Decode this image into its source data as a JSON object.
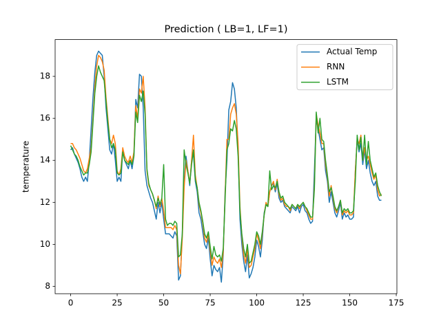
{
  "chart_data": {
    "type": "line",
    "title": "Prediction ( LB=1, LF=1)",
    "ylabel": "temperature",
    "x": [
      0,
      1,
      2,
      3,
      4,
      5,
      6,
      7,
      8,
      9,
      10,
      11,
      12,
      13,
      14,
      15,
      16,
      17,
      18,
      19,
      20,
      21,
      22,
      23,
      24,
      25,
      26,
      27,
      28,
      29,
      30,
      31,
      32,
      33,
      34,
      35,
      36,
      37,
      38,
      39,
      40,
      41,
      42,
      43,
      44,
      45,
      46,
      47,
      48,
      49,
      50,
      51,
      52,
      53,
      54,
      55,
      56,
      57,
      58,
      59,
      60,
      61,
      62,
      63,
      64,
      65,
      66,
      67,
      68,
      69,
      70,
      71,
      72,
      73,
      74,
      75,
      76,
      77,
      78,
      79,
      80,
      81,
      82,
      83,
      84,
      85,
      86,
      87,
      88,
      89,
      90,
      91,
      92,
      93,
      94,
      95,
      96,
      97,
      98,
      99,
      100,
      101,
      102,
      103,
      104,
      105,
      106,
      107,
      108,
      109,
      110,
      111,
      112,
      113,
      114,
      115,
      116,
      117,
      118,
      119,
      120,
      121,
      122,
      123,
      124,
      125,
      126,
      127,
      128,
      129,
      130,
      131,
      132,
      133,
      134,
      135,
      136,
      137,
      138,
      139,
      140,
      141,
      142,
      143,
      144,
      145,
      146,
      147,
      148,
      149,
      150,
      151,
      152,
      153,
      154,
      155,
      156,
      157,
      158,
      159,
      160,
      161,
      162,
      163,
      164,
      165,
      166,
      167
    ],
    "series": [
      {
        "name": "Actual Temp",
        "color": "#1f77b4",
        "values": [
          14.5,
          14.6,
          14.3,
          14.1,
          13.9,
          13.6,
          13.2,
          13.0,
          13.2,
          13.0,
          14.0,
          15.5,
          17.0,
          18.2,
          19.0,
          19.2,
          19.1,
          19.0,
          18.0,
          16.5,
          15.5,
          14.5,
          14.3,
          14.8,
          14.0,
          13.0,
          13.2,
          13.0,
          14.5,
          14.0,
          13.8,
          13.6,
          14.0,
          13.6,
          14.2,
          16.9,
          16.5,
          18.1,
          18.0,
          16.5,
          13.5,
          12.8,
          12.5,
          12.2,
          12.0,
          11.6,
          11.2,
          12.0,
          11.5,
          12.0,
          11.2,
          10.5,
          10.5,
          10.5,
          10.4,
          10.3,
          10.6,
          10.4,
          8.3,
          8.5,
          10.5,
          13.0,
          14.2,
          13.5,
          12.8,
          14.0,
          14.3,
          13.0,
          12.5,
          11.5,
          11.2,
          10.6,
          10.0,
          9.8,
          10.3,
          9.3,
          8.5,
          9.0,
          8.8,
          8.7,
          8.9,
          8.2,
          9.5,
          12.5,
          14.0,
          16.4,
          16.8,
          17.7,
          17.4,
          16.5,
          14.5,
          11.2,
          10.0,
          9.2,
          8.7,
          9.5,
          8.4,
          8.6,
          8.9,
          9.4,
          10.2,
          9.9,
          9.4,
          10.2,
          11.5,
          11.9,
          11.8,
          12.5,
          12.8,
          12.9,
          12.5,
          12.9,
          12.2,
          12.0,
          12.1,
          11.8,
          11.7,
          11.6,
          11.5,
          11.8,
          11.7,
          11.6,
          11.8,
          11.5,
          11.8,
          11.9,
          11.6,
          11.5,
          11.2,
          11.0,
          11.1,
          13.5,
          16.0,
          15.5,
          15.0,
          14.5,
          14.6,
          13.5,
          13.0,
          12.0,
          12.5,
          12.0,
          11.5,
          11.3,
          11.6,
          12.0,
          11.2,
          11.5,
          11.3,
          11.4,
          11.2,
          11.2,
          11.3,
          13.5,
          15.0,
          14.4,
          14.8,
          13.8,
          14.5,
          13.6,
          14.0,
          13.4,
          13.0,
          12.8,
          13.0,
          12.3,
          12.1,
          12.1
        ]
      },
      {
        "name": "RNN",
        "color": "#ff7f0e",
        "values": [
          14.8,
          14.8,
          14.6,
          14.5,
          14.3,
          14.1,
          13.8,
          13.5,
          13.4,
          13.6,
          14.1,
          14.6,
          16.0,
          17.5,
          18.5,
          19.0,
          18.9,
          18.7,
          18.3,
          17.0,
          16.0,
          15.0,
          14.8,
          15.2,
          14.8,
          13.5,
          13.3,
          13.6,
          14.6,
          14.2,
          14.0,
          13.9,
          14.2,
          13.9,
          14.4,
          16.6,
          16.0,
          17.4,
          17.2,
          18.0,
          16.5,
          13.5,
          12.8,
          12.6,
          12.4,
          12.1,
          11.7,
          12.3,
          11.8,
          12.2,
          11.6,
          10.8,
          10.8,
          10.8,
          10.8,
          10.7,
          10.9,
          10.7,
          9.0,
          8.6,
          10.3,
          12.7,
          14.0,
          13.5,
          12.9,
          14.0,
          15.2,
          13.3,
          12.7,
          11.9,
          11.5,
          11.0,
          10.3,
          10.1,
          10.5,
          9.7,
          9.0,
          9.4,
          9.2,
          9.1,
          9.3,
          8.9,
          9.6,
          12.3,
          15.0,
          15.0,
          16.2,
          16.5,
          16.7,
          16.2,
          14.8,
          11.8,
          10.4,
          9.5,
          9.1,
          9.8,
          8.9,
          9.0,
          9.4,
          9.8,
          10.5,
          10.2,
          9.8,
          10.5,
          11.4,
          12.0,
          11.8,
          12.5,
          12.8,
          13.0,
          12.6,
          13.1,
          12.4,
          12.1,
          12.2,
          11.9,
          11.8,
          11.8,
          11.6,
          11.9,
          11.8,
          11.7,
          11.9,
          11.7,
          11.9,
          12.0,
          11.8,
          11.6,
          11.4,
          11.2,
          11.2,
          12.8,
          16.2,
          15.7,
          15.3,
          14.8,
          14.8,
          13.8,
          13.2,
          12.3,
          12.8,
          12.2,
          11.7,
          11.5,
          11.8,
          12.1,
          11.4,
          11.6,
          11.5,
          11.6,
          11.4,
          11.4,
          11.5,
          13.5,
          15.0,
          14.8,
          15.2,
          14.0,
          14.6,
          14.0,
          14.2,
          13.8,
          13.4,
          13.1,
          13.3,
          12.6,
          12.3,
          12.4
        ]
      },
      {
        "name": "LSTM",
        "color": "#2ca02c",
        "values": [
          14.7,
          14.5,
          14.3,
          14.2,
          14.0,
          13.7,
          13.5,
          13.3,
          13.4,
          13.4,
          13.8,
          14.4,
          15.8,
          17.2,
          18.0,
          18.5,
          18.2,
          18.0,
          17.8,
          16.8,
          15.8,
          15.0,
          14.6,
          14.8,
          14.5,
          13.4,
          13.3,
          13.4,
          14.4,
          14.0,
          13.9,
          13.8,
          14.0,
          13.8,
          14.2,
          16.3,
          15.8,
          17.1,
          16.8,
          17.3,
          16.2,
          13.6,
          12.9,
          12.6,
          12.4,
          12.1,
          11.8,
          12.2,
          11.9,
          12.2,
          13.8,
          11.2,
          10.9,
          11.0,
          11.0,
          10.9,
          11.1,
          11.0,
          9.4,
          9.5,
          10.5,
          14.5,
          13.8,
          13.4,
          12.9,
          13.8,
          14.5,
          13.1,
          12.7,
          12.0,
          11.6,
          11.1,
          10.5,
          10.3,
          10.6,
          9.9,
          9.3,
          9.9,
          9.5,
          9.4,
          9.5,
          9.2,
          9.8,
          12.1,
          14.5,
          14.8,
          15.5,
          15.4,
          15.9,
          15.5,
          14.2,
          11.6,
          10.5,
          9.8,
          9.4,
          10.0,
          9.1,
          9.2,
          9.6,
          10.0,
          10.6,
          10.4,
          10.0,
          10.6,
          11.4,
          11.9,
          11.8,
          13.5,
          12.6,
          12.8,
          12.7,
          13.0,
          12.5,
          12.2,
          12.3,
          12.0,
          11.9,
          11.8,
          11.7,
          11.9,
          11.8,
          11.7,
          11.9,
          11.8,
          11.9,
          12.0,
          11.8,
          11.7,
          11.5,
          11.3,
          11.3,
          12.6,
          16.3,
          15.3,
          16.0,
          15.0,
          14.9,
          14.0,
          13.3,
          12.5,
          12.7,
          12.3,
          11.8,
          11.6,
          11.8,
          12.1,
          11.5,
          11.7,
          11.6,
          11.7,
          11.5,
          11.5,
          11.6,
          13.0,
          15.2,
          14.5,
          15.1,
          14.0,
          15.2,
          13.8,
          14.9,
          14.0,
          13.6,
          13.2,
          13.4,
          12.8,
          12.5,
          12.3
        ]
      }
    ],
    "xlim": [
      -8.35,
      175.35
    ],
    "ylim": [
      7.65,
      19.75
    ],
    "xticks": [
      0,
      25,
      50,
      75,
      100,
      125,
      150,
      175
    ],
    "yticks": [
      8,
      10,
      12,
      14,
      16,
      18
    ],
    "grid": false,
    "legend": "upper right"
  }
}
